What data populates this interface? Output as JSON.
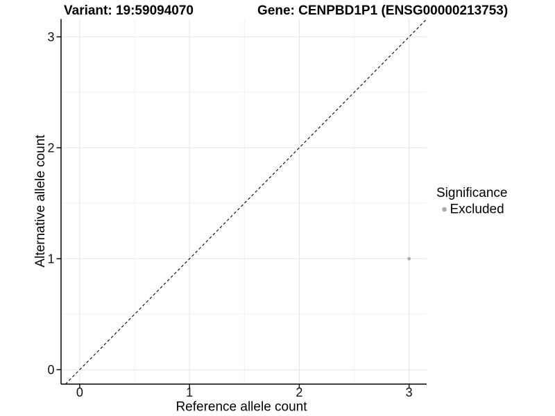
{
  "figure": {
    "background": "#ffffff"
  },
  "titles": {
    "left": "Variant: 19:59094070",
    "right": "Gene: CENPBD1P1 (ENSG00000213753)"
  },
  "chart_data": {
    "type": "scatter",
    "title_left": "Variant: 19:59094070",
    "title_right": "Gene: CENPBD1P1 (ENSG00000213753)",
    "xlabel": "Reference allele count",
    "ylabel": "Alternative allele count",
    "xlim": [
      -0.17,
      3.16
    ],
    "ylim": [
      -0.13,
      3.16
    ],
    "x_ticks": [
      0,
      1,
      2,
      3
    ],
    "y_ticks": [
      0,
      1,
      2,
      3
    ],
    "x_minor_ticks": [
      0.5,
      1.5,
      2.5
    ],
    "y_minor_ticks": [
      0.5,
      1.5,
      2.5
    ],
    "grid": "major and minor gridlines, light grey on white panel",
    "reference_line": {
      "kind": "identity y=x diagonal",
      "style": "dashed",
      "color": "#000000"
    },
    "series": [
      {
        "name": "Excluded",
        "color": "#aaaaaa",
        "marker": "circle",
        "points": [
          {
            "x": 3,
            "y": 1
          }
        ]
      }
    ],
    "legend": {
      "title": "Significance",
      "position": "right",
      "items": [
        {
          "label": "Excluded",
          "color": "#aaaaaa"
        }
      ]
    }
  },
  "style": {
    "grid_major_color": "#e4e4e4",
    "grid_minor_color": "#f1f1f1",
    "axis_color": "#000000",
    "text_color": "#000000"
  }
}
